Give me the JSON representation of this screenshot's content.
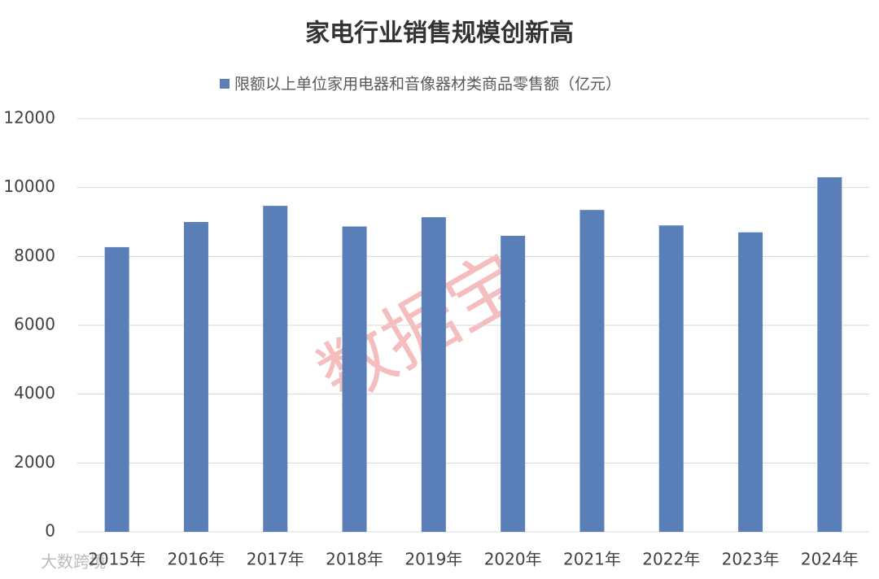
{
  "chart_data": {
    "type": "bar",
    "title": "家电行业销售规模创新高",
    "categories": [
      "2015年",
      "2016年",
      "2017年",
      "2018年",
      "2019年",
      "2020年",
      "2021年",
      "2022年",
      "2023年",
      "2024年"
    ],
    "series": [
      {
        "name": "限额以上单位家用电器和音像器材类商品零售额（亿元）",
        "color": "#5a7fb8",
        "values": [
          8270,
          9000,
          9470,
          8870,
          9140,
          8600,
          9350,
          8900,
          8700,
          10300
        ]
      }
    ],
    "ylim": [
      0,
      12000
    ],
    "yticks": [
      0,
      2000,
      4000,
      6000,
      8000,
      10000,
      12000
    ],
    "grid": true,
    "legend": "top",
    "watermark": "数据宝",
    "source": "大数跨境"
  }
}
